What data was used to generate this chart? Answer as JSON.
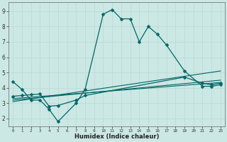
{
  "xlabel": "Humidex (Indice chaleur)",
  "bg_color": "#cce8e4",
  "line_color": "#006666",
  "xlim": [
    -0.5,
    23.5
  ],
  "ylim": [
    1.5,
    9.6
  ],
  "xticks": [
    0,
    1,
    2,
    3,
    4,
    5,
    6,
    7,
    8,
    9,
    10,
    11,
    12,
    13,
    14,
    15,
    16,
    17,
    18,
    19,
    20,
    21,
    22,
    23
  ],
  "yticks": [
    2,
    3,
    4,
    5,
    6,
    7,
    8,
    9
  ],
  "series1_x": [
    0,
    1,
    2,
    3,
    4,
    5,
    7,
    8,
    10,
    11,
    12,
    13,
    14,
    15,
    16,
    17,
    19,
    21,
    22,
    23
  ],
  "series1_y": [
    4.4,
    3.9,
    3.2,
    3.2,
    2.6,
    1.8,
    3.0,
    3.9,
    8.8,
    9.1,
    8.5,
    8.5,
    7.0,
    8.0,
    7.5,
    6.8,
    5.1,
    4.1,
    4.1,
    4.2
  ],
  "series2_x": [
    0,
    1,
    2,
    3,
    4,
    5,
    7,
    8,
    19,
    21,
    22,
    23
  ],
  "series2_y": [
    3.45,
    3.5,
    3.55,
    3.6,
    2.8,
    2.85,
    3.2,
    3.5,
    4.7,
    4.3,
    4.2,
    4.3
  ],
  "series3_x": [
    0,
    23
  ],
  "series3_y": [
    3.1,
    5.1
  ],
  "series4_x": [
    0,
    23
  ],
  "series4_y": [
    3.2,
    4.5
  ],
  "series5_x": [
    0,
    23
  ],
  "series5_y": [
    3.3,
    4.35
  ]
}
